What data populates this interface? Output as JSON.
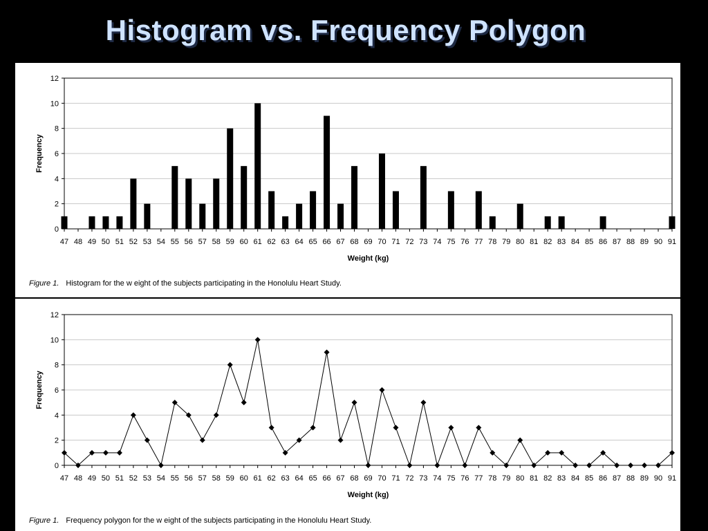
{
  "slide": {
    "title": "Histogram vs. Frequency Polygon"
  },
  "captions": [
    {
      "figure": "Figure 1.",
      "text": "Histogram for the w eight of the subjects participating in the Honolulu Heart Study."
    },
    {
      "figure": "Figure 1.",
      "text": "Frequency polygon for the w eight of the subjects participating in the Honolulu Heart Study."
    }
  ],
  "chart_data": [
    {
      "type": "bar",
      "xlabel": "Weight (kg)",
      "ylabel": "Frequency",
      "ylim": [
        0,
        12
      ],
      "yticks": [
        0,
        2,
        4,
        6,
        8,
        10,
        12
      ],
      "grid": true,
      "categories": [
        "47",
        "48",
        "49",
        "50",
        "51",
        "52",
        "53",
        "54",
        "55",
        "56",
        "57",
        "58",
        "59",
        "60",
        "61",
        "62",
        "63",
        "64",
        "65",
        "66",
        "67",
        "68",
        "69",
        "70",
        "71",
        "72",
        "73",
        "74",
        "75",
        "76",
        "77",
        "78",
        "79",
        "80",
        "81",
        "82",
        "83",
        "84",
        "85",
        "86",
        "87",
        "88",
        "89",
        "90",
        "91"
      ],
      "values": [
        1,
        0,
        1,
        1,
        1,
        4,
        2,
        0,
        5,
        4,
        2,
        4,
        8,
        5,
        10,
        3,
        1,
        2,
        3,
        9,
        2,
        5,
        0,
        6,
        3,
        0,
        5,
        0,
        3,
        0,
        3,
        1,
        0,
        2,
        0,
        1,
        1,
        0,
        0,
        1,
        0,
        0,
        0,
        0,
        1
      ],
      "color": "#000000"
    },
    {
      "type": "line",
      "xlabel": "Weight (kg)",
      "ylabel": "Frequency",
      "ylim": [
        0,
        12
      ],
      "yticks": [
        0,
        2,
        4,
        6,
        8,
        10,
        12
      ],
      "grid": true,
      "marker": "diamond",
      "categories": [
        "47",
        "48",
        "49",
        "50",
        "51",
        "52",
        "53",
        "54",
        "55",
        "56",
        "57",
        "58",
        "59",
        "60",
        "61",
        "62",
        "63",
        "64",
        "65",
        "66",
        "67",
        "68",
        "69",
        "70",
        "71",
        "72",
        "73",
        "74",
        "75",
        "76",
        "77",
        "78",
        "79",
        "80",
        "81",
        "82",
        "83",
        "84",
        "85",
        "86",
        "87",
        "88",
        "89",
        "90",
        "91"
      ],
      "values": [
        1,
        0,
        1,
        1,
        1,
        4,
        2,
        0,
        5,
        4,
        2,
        4,
        8,
        5,
        10,
        3,
        1,
        2,
        3,
        9,
        2,
        5,
        0,
        6,
        3,
        0,
        5,
        0,
        3,
        0,
        3,
        1,
        0,
        2,
        0,
        1,
        1,
        0,
        0,
        1,
        0,
        0,
        0,
        0,
        1
      ],
      "color": "#000000"
    }
  ]
}
